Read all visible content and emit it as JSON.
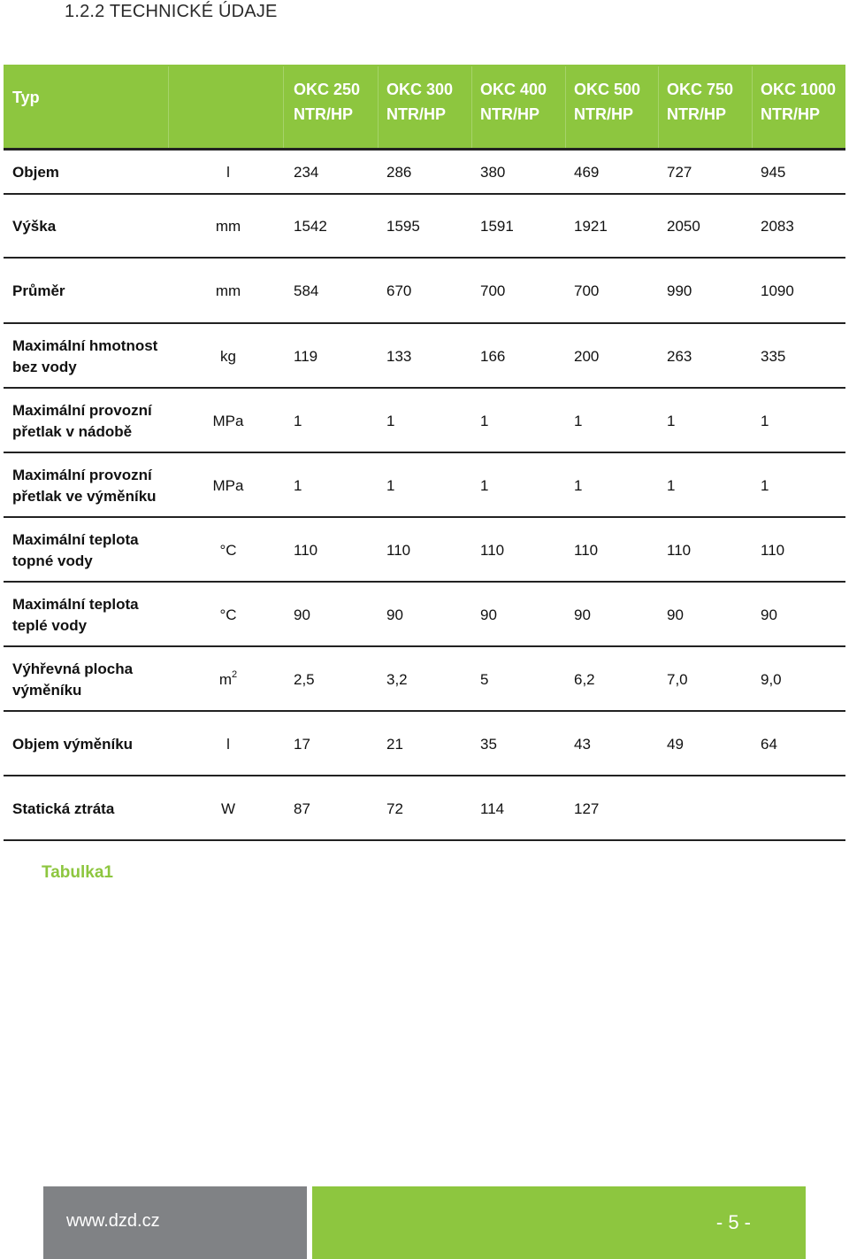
{
  "section": {
    "heading": "1.2.2   TECHNICKÉ ÚDAJE"
  },
  "table": {
    "header_label": "Typ",
    "models": [
      {
        "line1": "OKC 250",
        "line2": "NTR/HP"
      },
      {
        "line1": "OKC 300",
        "line2": "NTR/HP"
      },
      {
        "line1": "OKC 400",
        "line2": "NTR/HP"
      },
      {
        "line1": "OKC 500",
        "line2": "NTR/HP"
      },
      {
        "line1": "OKC 750",
        "line2": "NTR/HP"
      },
      {
        "line1": "OKC 1000",
        "line2": "NTR/HP"
      }
    ],
    "rows": [
      {
        "label1": "Objem",
        "label2": "",
        "unit": "l",
        "unit_sup": "",
        "values": [
          "234",
          "286",
          "380",
          "469",
          "727",
          "945"
        ]
      },
      {
        "label1": "Výška",
        "label2": "",
        "unit": "mm",
        "unit_sup": "",
        "values": [
          "1542",
          "1595",
          "1591",
          "1921",
          "2050",
          "2083"
        ]
      },
      {
        "label1": "Průměr",
        "label2": "",
        "unit": "mm",
        "unit_sup": "",
        "values": [
          "584",
          "670",
          "700",
          "700",
          "990",
          "1090"
        ]
      },
      {
        "label1": "Maximální hmotnost",
        "label2": "bez vody",
        "unit": "kg",
        "unit_sup": "",
        "values": [
          "119",
          "133",
          "166",
          "200",
          "263",
          "335"
        ]
      },
      {
        "label1": "Maximální provozní",
        "label2": "přetlak v nádobě",
        "unit": "MPa",
        "unit_sup": "",
        "values": [
          "1",
          "1",
          "1",
          "1",
          "1",
          "1"
        ]
      },
      {
        "label1": "Maximální provozní",
        "label2": "přetlak ve výměníku",
        "unit": "MPa",
        "unit_sup": "",
        "values": [
          "1",
          "1",
          "1",
          "1",
          "1",
          "1"
        ]
      },
      {
        "label1": "Maximální teplota",
        "label2": "topné vody",
        "unit": "°C",
        "unit_sup": "",
        "values": [
          "110",
          "110",
          "110",
          "110",
          "110",
          "110"
        ]
      },
      {
        "label1": "Maximální teplota",
        "label2": "teplé vody",
        "unit": "°C",
        "unit_sup": "",
        "values": [
          "90",
          "90",
          "90",
          "90",
          "90",
          "90"
        ]
      },
      {
        "label1": "Výhřevná plocha",
        "label2": "výměníku",
        "unit": "m",
        "unit_sup": "2",
        "values": [
          "2,5",
          "3,2",
          "5",
          "6,2",
          "7,0",
          "9,0"
        ]
      },
      {
        "label1": "Objem výměníku",
        "label2": "",
        "unit": "l",
        "unit_sup": "",
        "values": [
          "17",
          "21",
          "35",
          "43",
          "49",
          "64"
        ]
      },
      {
        "label1": "Statická ztráta",
        "label2": "",
        "unit": "W",
        "unit_sup": "",
        "values": [
          "87",
          "72",
          "114",
          "127",
          "",
          ""
        ]
      }
    ],
    "caption": "Tabulka1"
  },
  "footer": {
    "url": "www.dzd.cz",
    "page": "- 5 -",
    "grey_color": "#808285",
    "green_color": "#8dc63f"
  }
}
